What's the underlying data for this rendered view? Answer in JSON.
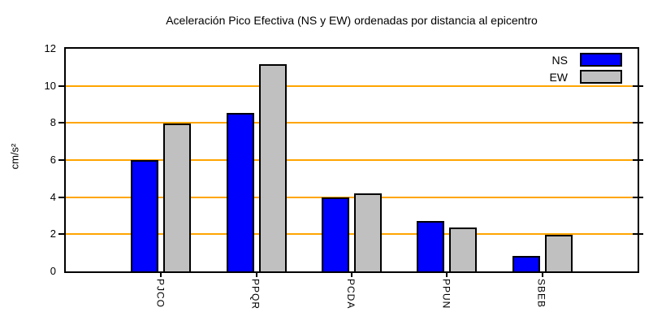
{
  "chart_data": {
    "type": "bar",
    "title": "Aceleración Pico Efectiva (NS y EW) ordenadas por distancia al epicentro",
    "categories": [
      "PJCO",
      "PPQR",
      "PCDA",
      "PPUN",
      "SBEB"
    ],
    "series": [
      {
        "name": "NS",
        "color": "#0000ff",
        "values": [
          6.0,
          8.55,
          4.0,
          2.7,
          0.85
        ]
      },
      {
        "name": "EW",
        "color": "#c0c0c0",
        "values": [
          7.95,
          11.15,
          4.2,
          2.35,
          1.95
        ]
      }
    ],
    "xlabel": "",
    "ylabel": "cm/s²",
    "ylim": [
      0,
      12
    ],
    "yticks": [
      0,
      2,
      4,
      6,
      8,
      10,
      12
    ],
    "grid": "horizontal",
    "grid_color": "#ffa500",
    "axis_color": "#000000",
    "background_color": "#ffffff",
    "legend_position": "top-right-inside"
  }
}
